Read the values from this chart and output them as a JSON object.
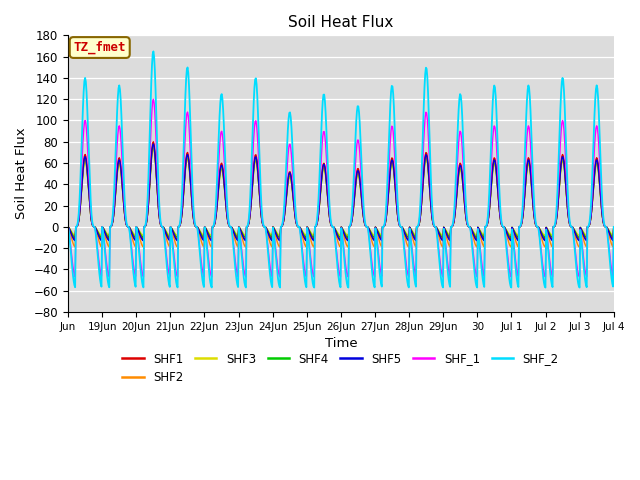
{
  "title": "Soil Heat Flux",
  "xlabel": "Time",
  "ylabel": "Soil Heat Flux",
  "ylim": [
    -80,
    180
  ],
  "yticks": [
    -80,
    -60,
    -40,
    -20,
    0,
    20,
    40,
    60,
    80,
    100,
    120,
    140,
    160,
    180
  ],
  "plot_bg_color": "#dcdcdc",
  "fig_bg_color": "#ffffff",
  "colors": {
    "SHF1": "#dd0000",
    "SHF2": "#ff8c00",
    "SHF3": "#dddd00",
    "SHF4": "#00cc00",
    "SHF5": "#0000dd",
    "SHF_1": "#ff00ff",
    "SHF_2": "#00ddff"
  },
  "xtick_labels": [
    "Jun",
    "19Jun",
    "20Jun",
    "21Jun",
    "22Jun",
    "23Jun",
    "24Jun",
    "25Jun",
    "26Jun",
    "27Jun",
    "28Jun",
    "29Jun",
    "30",
    "Jul 1",
    "Jul 2",
    "Jul 3",
    "Jul 4"
  ],
  "legend_box": {
    "text": "TZ_fmet",
    "bg_color": "#ffffcc",
    "border_color": "#886600",
    "text_color": "#cc0000"
  },
  "day_amplitudes": {
    "SHF1": [
      68,
      65,
      80,
      70,
      60,
      68,
      52,
      60,
      55,
      65,
      70,
      60,
      65,
      65,
      68,
      65
    ],
    "SHF2": [
      65,
      62,
      77,
      67,
      57,
      65,
      50,
      58,
      52,
      62,
      67,
      57,
      62,
      62,
      65,
      62
    ],
    "SHF3": [
      62,
      59,
      74,
      64,
      54,
      62,
      47,
      55,
      49,
      59,
      64,
      54,
      59,
      59,
      62,
      59
    ],
    "SHF4": [
      64,
      61,
      76,
      66,
      56,
      64,
      49,
      57,
      51,
      61,
      66,
      56,
      61,
      61,
      64,
      61
    ],
    "SHF5": [
      66,
      63,
      78,
      68,
      58,
      66,
      51,
      59,
      53,
      63,
      68,
      58,
      63,
      63,
      66,
      63
    ],
    "SHF_1": [
      100,
      95,
      120,
      108,
      90,
      100,
      78,
      90,
      82,
      95,
      108,
      90,
      95,
      95,
      100,
      95
    ],
    "SHF_2": [
      140,
      133,
      165,
      150,
      125,
      140,
      108,
      125,
      114,
      133,
      150,
      125,
      133,
      133,
      140,
      133
    ]
  },
  "night_mins": {
    "SHF1": -12,
    "SHF2": -19,
    "SHF3": -8,
    "SHF4": -10,
    "SHF5": -13,
    "SHF_1": -47,
    "SHF_2": -57
  }
}
